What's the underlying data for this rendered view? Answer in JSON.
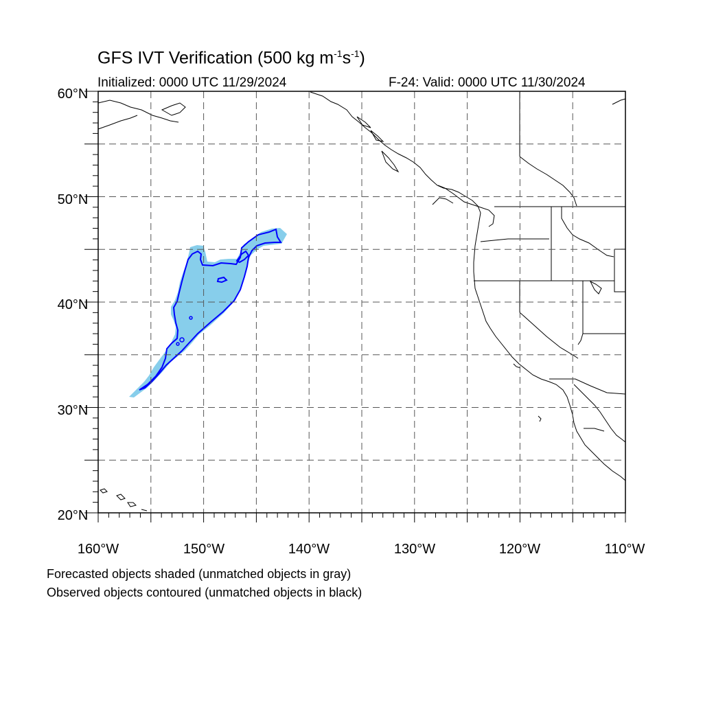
{
  "header": {
    "title_main": "GFS IVT Verification (500 kg m",
    "title_exp1": "-1",
    "title_mid": "s",
    "title_exp2": "-1",
    "title_end": ")",
    "initialized": "Initialized: 0000 UTC 11/29/2024",
    "valid": "F-24: Valid: 0000 UTC 11/30/2024"
  },
  "map": {
    "lon_range": [
      -160,
      -110
    ],
    "lat_range": [
      20,
      60
    ],
    "lon_labels": [
      "160°W",
      "150°W",
      "140°W",
      "130°W",
      "120°W",
      "110°W"
    ],
    "lat_labels": [
      "20°N",
      "30°N",
      "40°N",
      "50°N",
      "60°N"
    ],
    "forecast_fill_color": "#87ceeb",
    "observed_contour_color": "#0000ff"
  },
  "footer": {
    "note_forecast": "Forecasted objects shaded (unmatched objects in gray)",
    "note_observed": "Observed objects contoured (unmatched objects in black)"
  }
}
